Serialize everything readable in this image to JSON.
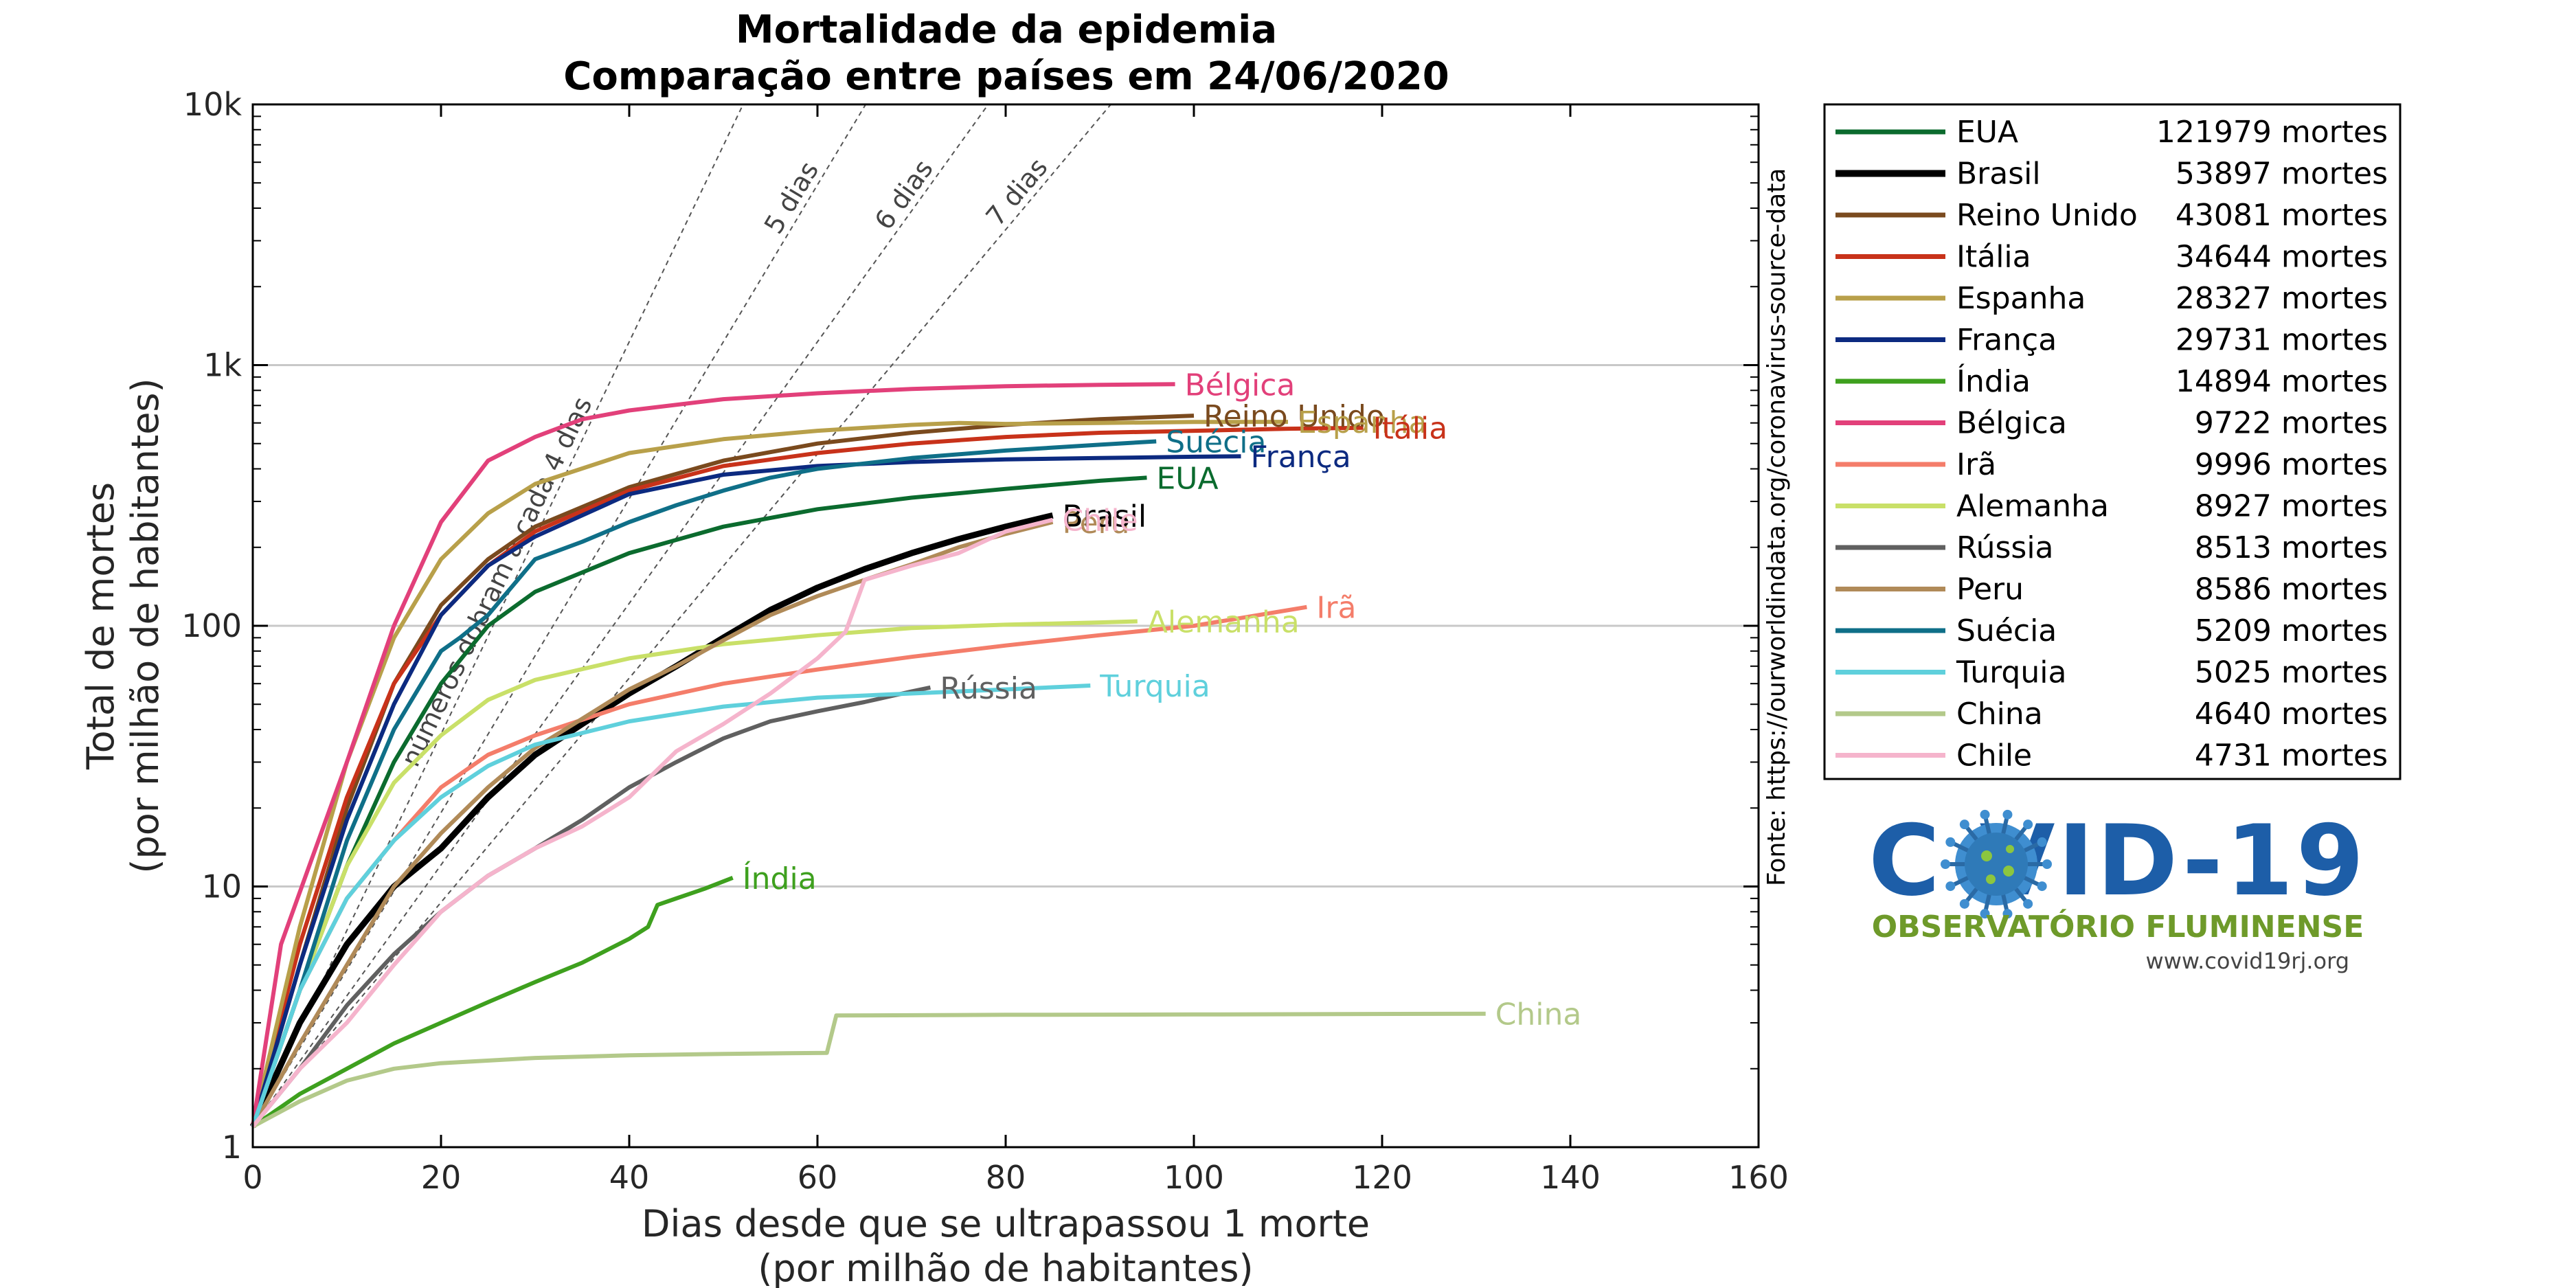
{
  "chart_data": {
    "type": "line",
    "title": "Mortalidade da epidemia",
    "subtitle": "Comparação entre países em 24/06/2020",
    "xlabel": "Dias desde que se ultrapassou 1 morte",
    "xlabel2": "(por milhão de habitantes)",
    "ylabel": "Total de mortes",
    "ylabel2": "(por milhão de habitantes)",
    "xlim": [
      0,
      160
    ],
    "ylim": [
      1,
      10000
    ],
    "yscale": "log",
    "x_ticks": [
      0,
      20,
      40,
      60,
      80,
      100,
      120,
      140,
      160
    ],
    "x_tick_labels": [
      "0",
      "20",
      "40",
      "60",
      "80",
      "100",
      "120",
      "140",
      "160"
    ],
    "y_ticks": [
      1,
      10,
      100,
      1000,
      10000
    ],
    "y_tick_labels": [
      "1",
      "10",
      "100",
      "1k",
      "10k"
    ],
    "grid": "horizontal",
    "legend_position": "right",
    "source_note": "Fonte: https://ourworldindata.org/coronavirus-source-data",
    "doubling_lines": [
      {
        "days": 4,
        "label": "números dobram a cada 4 dias"
      },
      {
        "days": 5,
        "label": "5 dias"
      },
      {
        "days": 6,
        "label": "6 dias"
      },
      {
        "days": 7,
        "label": "7 dias"
      }
    ],
    "series": [
      {
        "name": "EUA",
        "deaths": "121979 mortes",
        "color": "#0b6b2e",
        "points": [
          [
            0,
            1.2
          ],
          [
            5,
            4
          ],
          [
            10,
            12
          ],
          [
            15,
            30
          ],
          [
            20,
            60
          ],
          [
            25,
            100
          ],
          [
            30,
            135
          ],
          [
            40,
            190
          ],
          [
            50,
            240
          ],
          [
            60,
            280
          ],
          [
            70,
            310
          ],
          [
            80,
            335
          ],
          [
            90,
            360
          ],
          [
            95,
            370
          ]
        ]
      },
      {
        "name": "Brasil",
        "deaths": "53897 mortes",
        "color": "#000000",
        "points": [
          [
            0,
            1.2
          ],
          [
            5,
            3
          ],
          [
            10,
            6
          ],
          [
            15,
            10
          ],
          [
            20,
            14
          ],
          [
            25,
            22
          ],
          [
            30,
            32
          ],
          [
            35,
            42
          ],
          [
            40,
            55
          ],
          [
            45,
            70
          ],
          [
            50,
            90
          ],
          [
            55,
            115
          ],
          [
            60,
            140
          ],
          [
            65,
            165
          ],
          [
            70,
            190
          ],
          [
            75,
            215
          ],
          [
            80,
            240
          ],
          [
            85,
            265
          ]
        ]
      },
      {
        "name": "Reino Unido",
        "deaths": "43081 mortes",
        "color": "#7a4a1e",
        "points": [
          [
            0,
            1.2
          ],
          [
            5,
            5
          ],
          [
            10,
            20
          ],
          [
            15,
            60
          ],
          [
            20,
            120
          ],
          [
            25,
            180
          ],
          [
            30,
            240
          ],
          [
            40,
            340
          ],
          [
            50,
            430
          ],
          [
            60,
            500
          ],
          [
            70,
            550
          ],
          [
            80,
            590
          ],
          [
            90,
            620
          ],
          [
            100,
            640
          ]
        ]
      },
      {
        "name": "Itália",
        "deaths": "34644 mortes",
        "color": "#c8321a",
        "points": [
          [
            0,
            1.2
          ],
          [
            5,
            6
          ],
          [
            10,
            22
          ],
          [
            15,
            60
          ],
          [
            20,
            110
          ],
          [
            25,
            170
          ],
          [
            30,
            230
          ],
          [
            40,
            330
          ],
          [
            50,
            410
          ],
          [
            60,
            460
          ],
          [
            70,
            500
          ],
          [
            80,
            530
          ],
          [
            90,
            550
          ],
          [
            100,
            560
          ],
          [
            110,
            570
          ],
          [
            118,
            575
          ]
        ]
      },
      {
        "name": "Espanha",
        "deaths": "28327 mortes",
        "color": "#b8a04a",
        "points": [
          [
            0,
            1.2
          ],
          [
            5,
            7
          ],
          [
            10,
            30
          ],
          [
            15,
            90
          ],
          [
            20,
            180
          ],
          [
            25,
            270
          ],
          [
            30,
            350
          ],
          [
            40,
            460
          ],
          [
            50,
            520
          ],
          [
            60,
            560
          ],
          [
            70,
            590
          ],
          [
            75,
            600
          ],
          [
            80,
            595
          ],
          [
            90,
            600
          ],
          [
            100,
            605
          ],
          [
            110,
            606
          ]
        ]
      },
      {
        "name": "França",
        "deaths": "29731 mortes",
        "color": "#0c2a80",
        "points": [
          [
            0,
            1.2
          ],
          [
            5,
            5
          ],
          [
            10,
            18
          ],
          [
            15,
            50
          ],
          [
            20,
            110
          ],
          [
            25,
            170
          ],
          [
            30,
            220
          ],
          [
            40,
            320
          ],
          [
            50,
            380
          ],
          [
            60,
            410
          ],
          [
            70,
            425
          ],
          [
            80,
            435
          ],
          [
            90,
            440
          ],
          [
            100,
            445
          ],
          [
            105,
            447
          ]
        ]
      },
      {
        "name": "Índia",
        "deaths": "14894 mortes",
        "color": "#3ea01e",
        "points": [
          [
            0,
            1.2
          ],
          [
            5,
            1.6
          ],
          [
            10,
            2
          ],
          [
            15,
            2.5
          ],
          [
            20,
            3
          ],
          [
            25,
            3.6
          ],
          [
            30,
            4.3
          ],
          [
            35,
            5.1
          ],
          [
            40,
            6.3
          ],
          [
            42,
            7
          ],
          [
            43,
            8.5
          ],
          [
            45,
            9
          ],
          [
            48,
            9.8
          ],
          [
            51,
            10.8
          ]
        ]
      },
      {
        "name": "Bélgica",
        "deaths": "9722 mortes",
        "color": "#e2407a",
        "points": [
          [
            0,
            1.2
          ],
          [
            3,
            6
          ],
          [
            6,
            12
          ],
          [
            10,
            30
          ],
          [
            15,
            100
          ],
          [
            20,
            250
          ],
          [
            25,
            430
          ],
          [
            30,
            530
          ],
          [
            35,
            620
          ],
          [
            40,
            670
          ],
          [
            50,
            740
          ],
          [
            60,
            780
          ],
          [
            70,
            810
          ],
          [
            80,
            830
          ],
          [
            90,
            840
          ],
          [
            98,
            845
          ]
        ]
      },
      {
        "name": "Irã",
        "deaths": "9996 mortes",
        "color": "#f47d6a",
        "points": [
          [
            0,
            1.2
          ],
          [
            5,
            4
          ],
          [
            10,
            9
          ],
          [
            15,
            15
          ],
          [
            20,
            24
          ],
          [
            25,
            32
          ],
          [
            30,
            38
          ],
          [
            40,
            50
          ],
          [
            50,
            60
          ],
          [
            60,
            68
          ],
          [
            70,
            76
          ],
          [
            80,
            84
          ],
          [
            90,
            92
          ],
          [
            100,
            100
          ],
          [
            112,
            118
          ]
        ]
      },
      {
        "name": "Alemanha",
        "deaths": "8927 mortes",
        "color": "#c9e068",
        "points": [
          [
            0,
            1.2
          ],
          [
            5,
            4
          ],
          [
            10,
            12
          ],
          [
            15,
            25
          ],
          [
            20,
            38
          ],
          [
            25,
            52
          ],
          [
            30,
            62
          ],
          [
            40,
            75
          ],
          [
            50,
            85
          ],
          [
            60,
            92
          ],
          [
            70,
            98
          ],
          [
            80,
            101
          ],
          [
            90,
            103
          ],
          [
            94,
            104
          ]
        ]
      },
      {
        "name": "Rússia",
        "deaths": "8513 mortes",
        "color": "#606060",
        "points": [
          [
            0,
            1.2
          ],
          [
            5,
            2
          ],
          [
            10,
            3.5
          ],
          [
            15,
            5.5
          ],
          [
            20,
            8
          ],
          [
            25,
            11
          ],
          [
            30,
            14
          ],
          [
            35,
            18
          ],
          [
            40,
            24
          ],
          [
            45,
            30
          ],
          [
            50,
            37
          ],
          [
            55,
            43
          ],
          [
            60,
            47
          ],
          [
            65,
            51
          ],
          [
            70,
            56
          ],
          [
            72,
            58
          ]
        ]
      },
      {
        "name": "Peru",
        "deaths": "8586 mortes",
        "color": "#b08a58",
        "points": [
          [
            0,
            1.2
          ],
          [
            5,
            2.5
          ],
          [
            10,
            5
          ],
          [
            15,
            10
          ],
          [
            20,
            16
          ],
          [
            25,
            24
          ],
          [
            30,
            34
          ],
          [
            35,
            44
          ],
          [
            40,
            57
          ],
          [
            45,
            70
          ],
          [
            50,
            88
          ],
          [
            55,
            110
          ],
          [
            60,
            130
          ],
          [
            65,
            150
          ],
          [
            70,
            172
          ],
          [
            75,
            200
          ],
          [
            80,
            225
          ],
          [
            85,
            250
          ]
        ]
      },
      {
        "name": "Suécia",
        "deaths": "5209 mortes",
        "color": "#0f6f88",
        "points": [
          [
            0,
            1.2
          ],
          [
            5,
            4
          ],
          [
            10,
            15
          ],
          [
            15,
            40
          ],
          [
            20,
            80
          ],
          [
            22,
            90
          ],
          [
            25,
            110
          ],
          [
            30,
            180
          ],
          [
            35,
            210
          ],
          [
            40,
            250
          ],
          [
            45,
            290
          ],
          [
            50,
            330
          ],
          [
            55,
            370
          ],
          [
            60,
            400
          ],
          [
            70,
            440
          ],
          [
            80,
            470
          ],
          [
            90,
            495
          ],
          [
            96,
            510
          ]
        ]
      },
      {
        "name": "Turquia",
        "deaths": "5025 mortes",
        "color": "#5fd0dc",
        "points": [
          [
            0,
            1.2
          ],
          [
            5,
            4
          ],
          [
            10,
            9
          ],
          [
            15,
            15
          ],
          [
            20,
            22
          ],
          [
            25,
            29
          ],
          [
            30,
            35
          ],
          [
            40,
            43
          ],
          [
            50,
            49
          ],
          [
            60,
            53
          ],
          [
            70,
            55
          ],
          [
            80,
            57
          ],
          [
            89,
            59
          ]
        ]
      },
      {
        "name": "China",
        "deaths": "4640 mortes",
        "color": "#b3c98a",
        "points": [
          [
            0,
            1.2
          ],
          [
            5,
            1.5
          ],
          [
            10,
            1.8
          ],
          [
            15,
            2
          ],
          [
            20,
            2.1
          ],
          [
            30,
            2.2
          ],
          [
            40,
            2.25
          ],
          [
            50,
            2.28
          ],
          [
            61,
            2.3
          ],
          [
            62,
            3.2
          ],
          [
            80,
            3.22
          ],
          [
            100,
            3.23
          ],
          [
            131,
            3.25
          ]
        ]
      },
      {
        "name": "Chile",
        "deaths": "4731 mortes",
        "color": "#f5b4cc",
        "points": [
          [
            0,
            1.2
          ],
          [
            5,
            2
          ],
          [
            10,
            3
          ],
          [
            15,
            5
          ],
          [
            20,
            8
          ],
          [
            25,
            11
          ],
          [
            30,
            14
          ],
          [
            35,
            17
          ],
          [
            40,
            22
          ],
          [
            45,
            33
          ],
          [
            50,
            42
          ],
          [
            55,
            55
          ],
          [
            60,
            75
          ],
          [
            63,
            95
          ],
          [
            65,
            150
          ],
          [
            70,
            170
          ],
          [
            75,
            190
          ],
          [
            80,
            230
          ],
          [
            85,
            255
          ]
        ]
      }
    ],
    "end_labels": [
      {
        "text": "Bélgica",
        "series": "Bélgica"
      },
      {
        "text": "Reino Unido",
        "series": "Reino Unido"
      },
      {
        "text": "Espanha",
        "series": "Espanha"
      },
      {
        "text": "Itália",
        "series": "Itália"
      },
      {
        "text": "Suécia",
        "series": "Suécia"
      },
      {
        "text": "França",
        "series": "França"
      },
      {
        "text": "EUA",
        "series": "EUA"
      },
      {
        "text": "Peru",
        "series": "Peru"
      },
      {
        "text": "Brasil",
        "series": "Brasil"
      },
      {
        "text": "Chile",
        "series": "Chile"
      },
      {
        "text": "Irã",
        "series": "Irã"
      },
      {
        "text": "Alemanha",
        "series": "Alemanha"
      },
      {
        "text": "Rússia",
        "series": "Rússia"
      },
      {
        "text": "Turquia",
        "series": "Turquia"
      },
      {
        "text": "Índia",
        "series": "Índia"
      },
      {
        "text": "China",
        "series": "China"
      }
    ]
  },
  "logo": {
    "title": "COVID-19",
    "subtitle": "OBSERVATÓRIO FLUMINENSE",
    "url": "www.covid19rj.org",
    "primary_color": "#1d5ea8",
    "accent_color": "#6e9a2a"
  }
}
